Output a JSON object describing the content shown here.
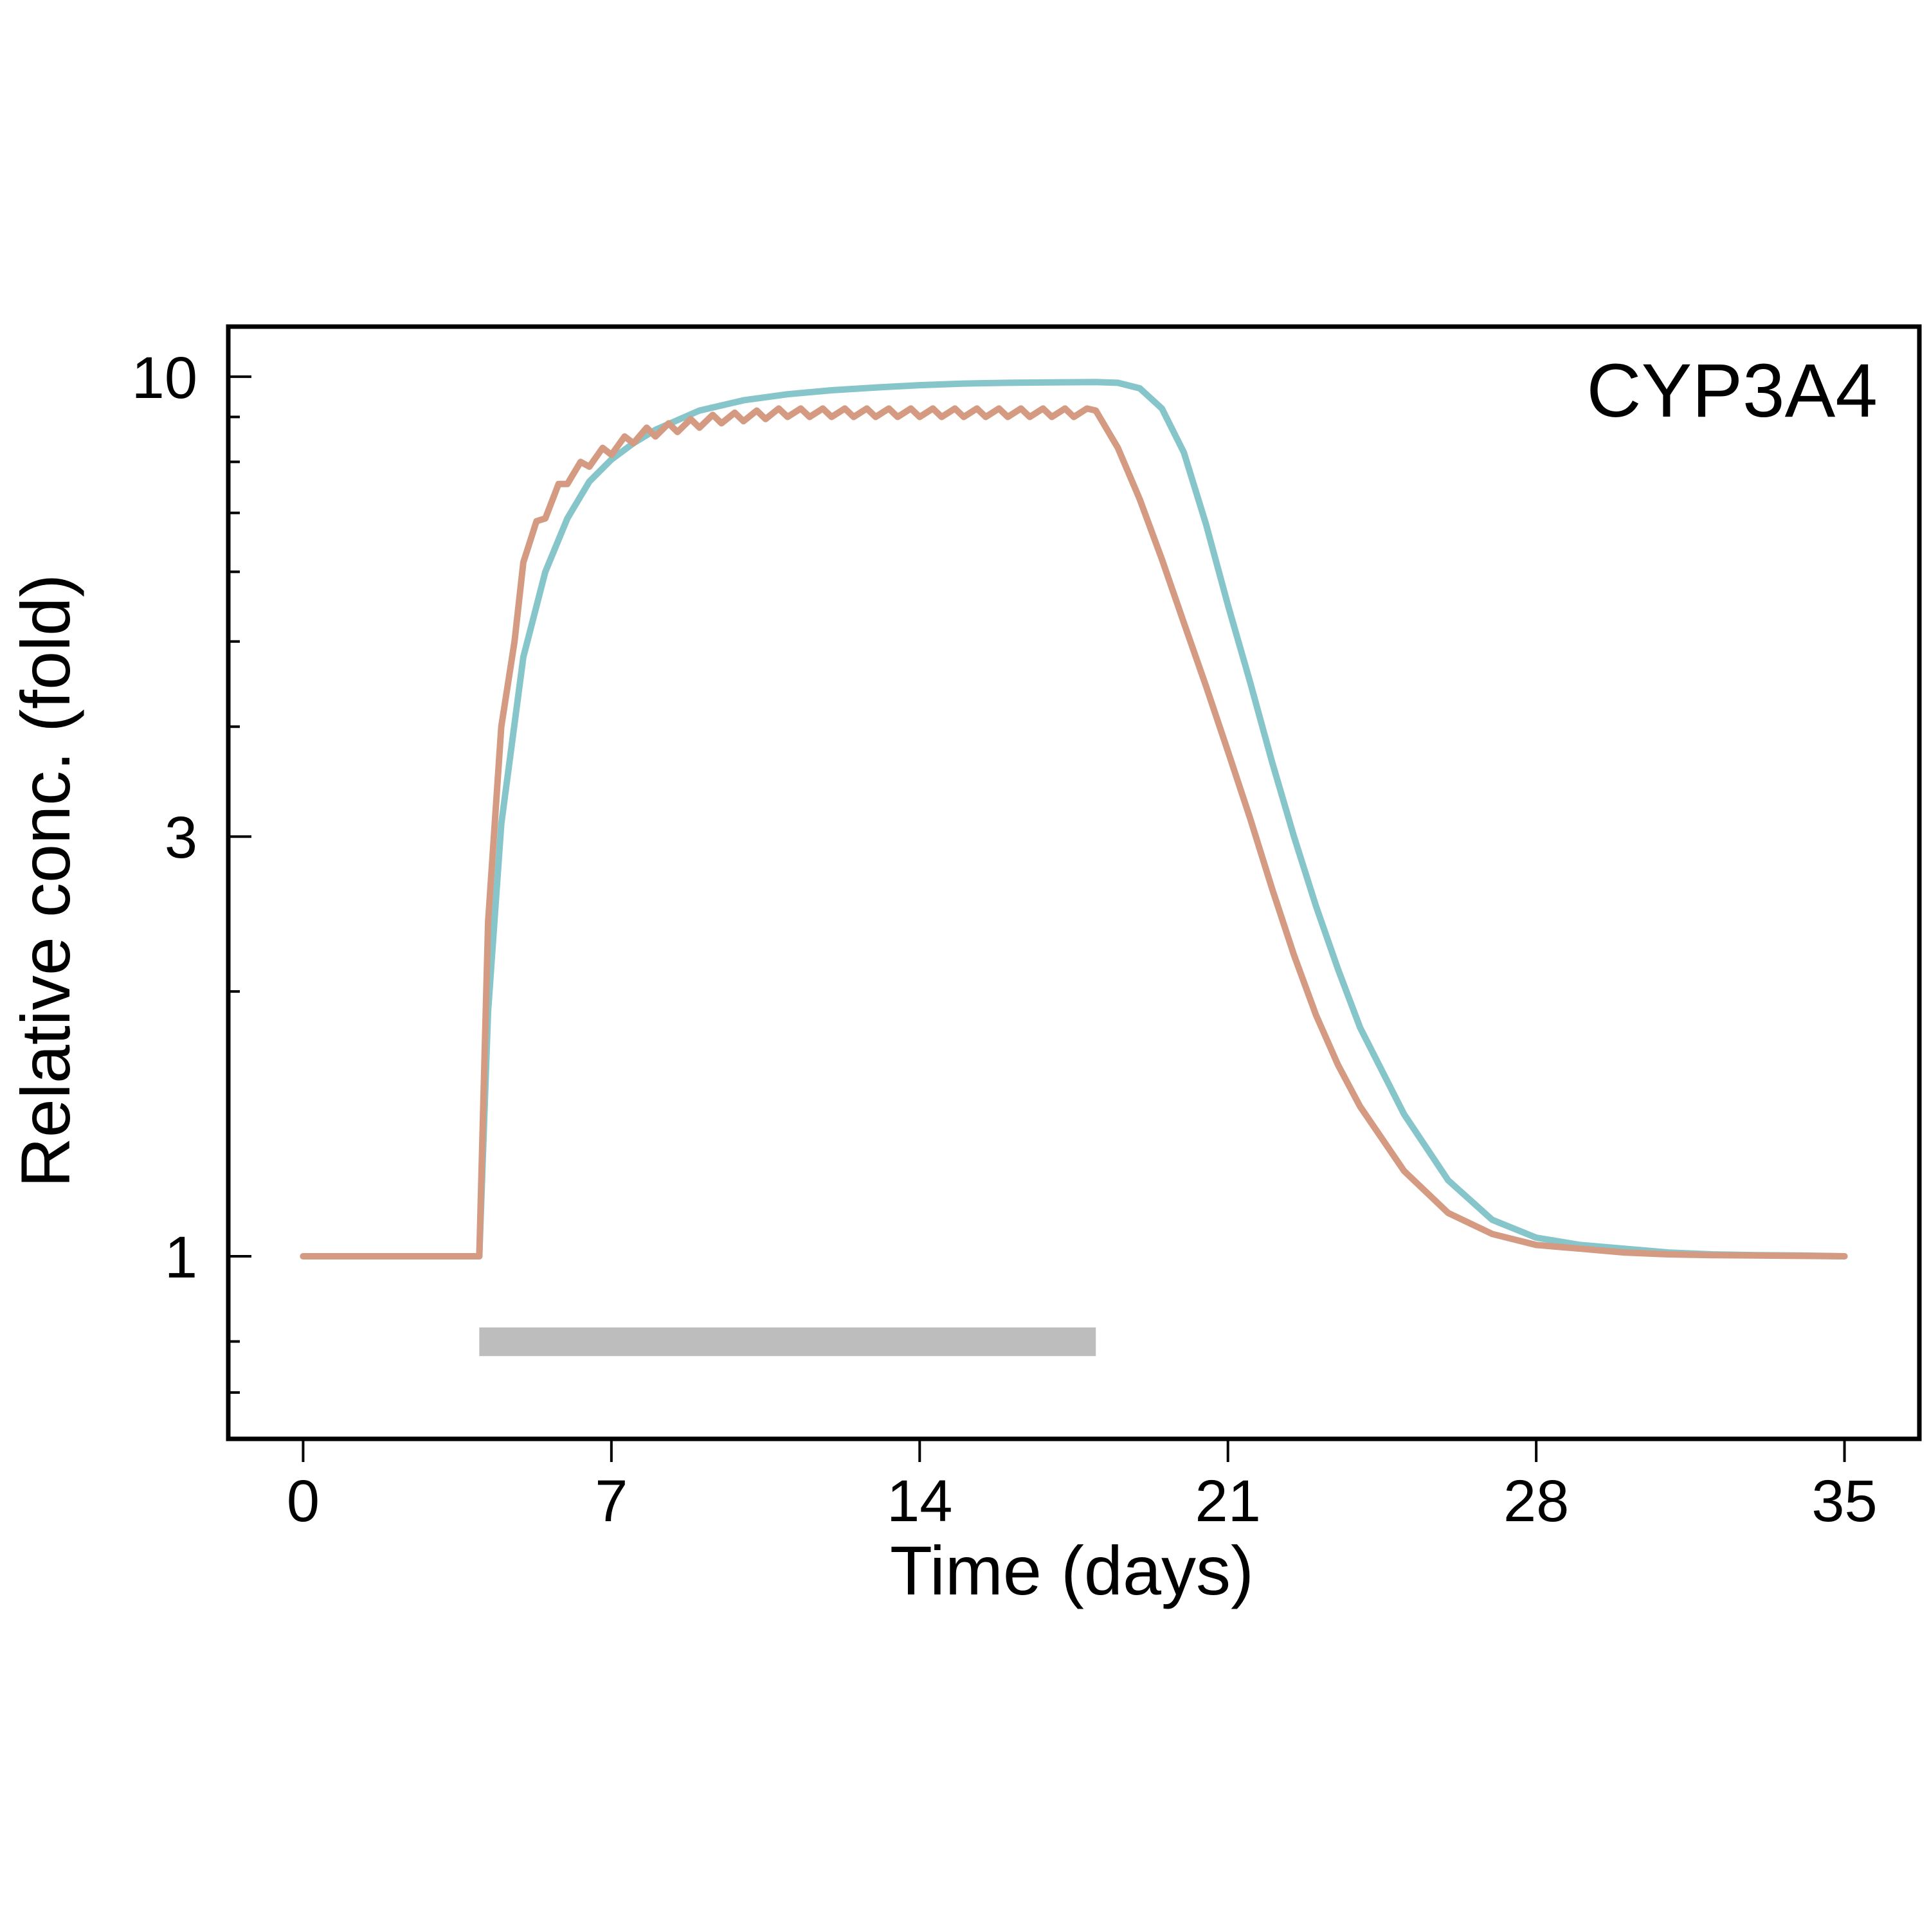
{
  "chart_data": {
    "type": "line",
    "annotation": "CYP3A4",
    "xlabel": "Time (days)",
    "ylabel": "Relative conc. (fold)",
    "x_ticks": [
      0,
      7,
      14,
      21,
      28,
      35
    ],
    "y_ticks": [
      1,
      3,
      10
    ],
    "y_minor_ticks": [
      0.7,
      0.8,
      2,
      4,
      5,
      6,
      7,
      8,
      9
    ],
    "xlim": [
      -1.7,
      36.7
    ],
    "ylim": [
      0.62,
      11.4
    ],
    "y_scale": "log",
    "grid": false,
    "legend": "none",
    "treatment_bar": {
      "x_start": 4,
      "x_end": 18,
      "y_low": 0.77,
      "y_high": 0.83,
      "color": "#bdbdbd"
    },
    "series": [
      {
        "color": "#86c5c9",
        "x": [
          0,
          3.9,
          4.0,
          4.2,
          4.5,
          5.0,
          5.5,
          6.0,
          6.5,
          7.0,
          7.5,
          8.0,
          9.0,
          10.0,
          11.0,
          12.0,
          13.0,
          14.0,
          15.0,
          16.0,
          17.0,
          18.0,
          18.5,
          19.0,
          19.5,
          20.0,
          20.5,
          21.0,
          21.5,
          22.0,
          22.5,
          23.0,
          23.5,
          24.0,
          25.0,
          26.0,
          27.0,
          28.0,
          29.0,
          30.0,
          31.0,
          32.0,
          33.0,
          34.0,
          35.0
        ],
        "y": [
          1.0,
          1.0,
          1.0,
          1.9,
          3.1,
          4.8,
          6.0,
          6.9,
          7.6,
          8.05,
          8.4,
          8.7,
          9.15,
          9.4,
          9.55,
          9.65,
          9.72,
          9.78,
          9.82,
          9.84,
          9.85,
          9.86,
          9.84,
          9.7,
          9.2,
          8.2,
          6.8,
          5.5,
          4.5,
          3.65,
          3.0,
          2.5,
          2.12,
          1.82,
          1.45,
          1.22,
          1.1,
          1.05,
          1.03,
          1.02,
          1.01,
          1.005,
          1.003,
          1.002,
          1.0
        ]
      },
      {
        "color": "#d49a82",
        "x": [
          0,
          3.9,
          4.0,
          4.2,
          4.5,
          4.8,
          5.0,
          5.3,
          5.5,
          5.8,
          6.0,
          6.3,
          6.5,
          6.8,
          7.0,
          7.3,
          7.5,
          7.8,
          8.0,
          8.3,
          8.5,
          8.8,
          9.0,
          9.3,
          9.5,
          9.8,
          10.0,
          10.3,
          10.5,
          10.8,
          11.0,
          11.3,
          11.5,
          11.8,
          12.0,
          12.3,
          12.5,
          12.8,
          13.0,
          13.3,
          13.5,
          13.8,
          14.0,
          14.3,
          14.5,
          14.8,
          15.0,
          15.3,
          15.5,
          15.8,
          16.0,
          16.3,
          16.5,
          16.8,
          17.0,
          17.3,
          17.5,
          17.8,
          18.0,
          18.5,
          19.0,
          19.5,
          20.0,
          20.5,
          21.0,
          21.5,
          22.0,
          22.5,
          23.0,
          23.5,
          24.0,
          25.0,
          26.0,
          27.0,
          28.0,
          29.0,
          30.0,
          31.0,
          32.0,
          33.0,
          34.0,
          35.0
        ],
        "y": [
          1.0,
          1.0,
          1.0,
          2.4,
          4.0,
          5.0,
          6.15,
          6.85,
          6.9,
          7.55,
          7.55,
          8.0,
          7.9,
          8.3,
          8.15,
          8.55,
          8.4,
          8.75,
          8.55,
          8.85,
          8.65,
          8.95,
          8.75,
          9.05,
          8.85,
          9.1,
          8.9,
          9.15,
          8.95,
          9.2,
          9.0,
          9.2,
          9.0,
          9.2,
          9.0,
          9.2,
          9.0,
          9.2,
          9.0,
          9.2,
          9.0,
          9.2,
          9.0,
          9.2,
          9.0,
          9.2,
          9.0,
          9.2,
          9.0,
          9.2,
          9.0,
          9.2,
          9.0,
          9.2,
          9.0,
          9.2,
          9.0,
          9.2,
          9.15,
          8.3,
          7.25,
          6.2,
          5.25,
          4.45,
          3.75,
          3.15,
          2.62,
          2.2,
          1.88,
          1.65,
          1.48,
          1.25,
          1.12,
          1.06,
          1.03,
          1.02,
          1.01,
          1.005,
          1.003,
          1.002,
          1.001,
          1.0
        ]
      }
    ]
  }
}
